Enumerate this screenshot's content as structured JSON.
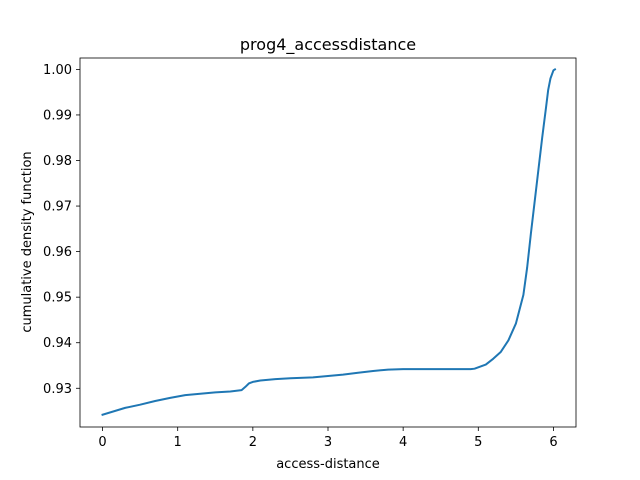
{
  "chart_data": {
    "type": "line",
    "title": "prog4_accessdistance",
    "xlabel": "access-distance",
    "ylabel": "cumulative density function",
    "xlim": [
      -0.3,
      6.3
    ],
    "ylim": [
      0.9215,
      1.0025
    ],
    "xticks": [
      0,
      1,
      2,
      3,
      4,
      5,
      6
    ],
    "xtick_labels": [
      "0",
      "1",
      "2",
      "3",
      "4",
      "5",
      "6"
    ],
    "yticks": [
      0.93,
      0.94,
      0.95,
      0.96,
      0.97,
      0.98,
      0.99,
      1.0
    ],
    "ytick_labels": [
      "0.93",
      "0.94",
      "0.95",
      "0.96",
      "0.97",
      "0.98",
      "0.99",
      "1.00"
    ],
    "grid": false,
    "series": [
      {
        "color": "#1f77b4",
        "x": [
          0,
          0.3,
          0.5,
          0.7,
          0.9,
          1.0,
          1.1,
          1.3,
          1.5,
          1.7,
          1.85,
          1.9,
          1.95,
          2.0,
          2.1,
          2.3,
          2.5,
          2.8,
          3.0,
          3.2,
          3.4,
          3.6,
          3.8,
          4.0,
          4.3,
          4.6,
          4.9,
          4.95,
          5.0,
          5.1,
          5.2,
          5.3,
          5.4,
          5.5,
          5.6,
          5.65,
          5.7,
          5.75,
          5.8,
          5.85,
          5.9,
          5.93,
          5.96,
          6.0,
          6.02
        ],
        "y": [
          0.9242,
          0.9257,
          0.9264,
          0.9272,
          0.9279,
          0.9282,
          0.9285,
          0.9288,
          0.9291,
          0.9293,
          0.9296,
          0.9303,
          0.9311,
          0.9314,
          0.9317,
          0.932,
          0.9322,
          0.9324,
          0.9327,
          0.933,
          0.9334,
          0.9338,
          0.9341,
          0.9342,
          0.9342,
          0.9342,
          0.9342,
          0.9343,
          0.9346,
          0.9352,
          0.9365,
          0.938,
          0.9405,
          0.9442,
          0.9505,
          0.9565,
          0.964,
          0.971,
          0.978,
          0.985,
          0.9915,
          0.9955,
          0.998,
          0.9998,
          1.0
        ]
      }
    ]
  }
}
